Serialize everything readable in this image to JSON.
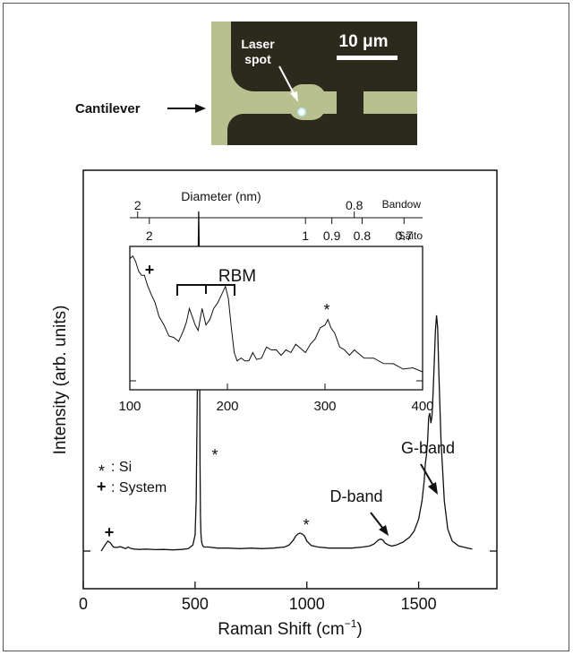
{
  "figure": {
    "cantilever_label": "Cantilever",
    "laser_label_line1": "Laser",
    "laser_label_line2": "spot",
    "scale_bar_label": "10 μm"
  },
  "chart_data": [
    {
      "type": "line",
      "name": "main",
      "xlabel": "Raman Shift (cm",
      "xlabel_sup": "−1",
      "xlabel_close": ")",
      "ylabel": "Intensity (arb. units)",
      "xlim": [
        0,
        1850
      ],
      "xticks": [
        0,
        500,
        1000,
        1500
      ],
      "x": [
        80,
        100,
        110,
        120,
        135,
        150,
        165,
        180,
        190,
        200,
        215,
        230,
        250,
        280,
        320,
        360,
        400,
        440,
        470,
        490,
        500,
        505,
        510,
        514,
        516,
        518,
        520,
        522,
        524,
        526,
        528,
        530,
        535,
        540,
        560,
        600,
        650,
        700,
        750,
        800,
        850,
        900,
        920,
        940,
        950,
        960,
        970,
        980,
        990,
        1000,
        1020,
        1050,
        1100,
        1150,
        1200,
        1250,
        1280,
        1300,
        1320,
        1330,
        1340,
        1350,
        1365,
        1380,
        1400,
        1430,
        1460,
        1480,
        1500,
        1515,
        1525,
        1530,
        1535,
        1540,
        1545,
        1550,
        1555,
        1560,
        1565,
        1570,
        1575,
        1580,
        1585,
        1590,
        1600,
        1615,
        1630,
        1650,
        1680,
        1700,
        1720,
        1740
      ],
      "y": [
        0,
        0.35,
        0.5,
        0.42,
        0.2,
        0.18,
        0.22,
        0.16,
        0.12,
        0.2,
        0.12,
        0.1,
        0.08,
        0.1,
        0.07,
        0.08,
        0.06,
        0.08,
        0.12,
        0.3,
        0.8,
        2.5,
        8,
        15,
        17,
        15.5,
        10,
        4.5,
        1.8,
        0.9,
        0.6,
        0.4,
        0.25,
        0.2,
        0.2,
        0.15,
        0.15,
        0.12,
        0.15,
        0.12,
        0.15,
        0.2,
        0.3,
        0.55,
        0.75,
        0.85,
        0.9,
        0.85,
        0.75,
        0.5,
        0.28,
        0.2,
        0.15,
        0.15,
        0.15,
        0.2,
        0.25,
        0.35,
        0.55,
        0.6,
        0.55,
        0.4,
        0.3,
        0.25,
        0.3,
        0.45,
        0.7,
        1,
        1.6,
        2.5,
        3.5,
        4.4,
        4.8,
        5.5,
        6.7,
        6.9,
        6.4,
        6.8,
        8,
        9.5,
        11,
        11.8,
        11.2,
        9,
        5.5,
        2.5,
        1.1,
        0.5,
        0.25,
        0.2,
        0.15,
        0.1
      ],
      "annotations": [
        {
          "text": "*",
          "x": 570,
          "y": 6.5
        },
        {
          "text": "*",
          "x": 960,
          "y": 1.35
        },
        {
          "text": "+",
          "x": 120,
          "y": 0.9
        },
        {
          "text": "G-band"
        },
        {
          "text": "D-band"
        }
      ],
      "legend": [
        {
          "symbol": "*",
          "label": ": Si"
        },
        {
          "symbol": "+",
          "label": ": System"
        }
      ]
    },
    {
      "type": "line",
      "name": "inset",
      "xlim": [
        100,
        400
      ],
      "xticks": [
        100,
        200,
        300,
        400
      ],
      "top_axis_1_label": "Bandow",
      "top_axis_1_ticks": [
        {
          "label": "2",
          "x": 108
        },
        {
          "label": "0.8",
          "x": 330
        }
      ],
      "top_axis_2_label": "Saito",
      "top_axis_2_ticks": [
        {
          "label": "2",
          "x": 120
        },
        {
          "label": "1",
          "x": 280
        },
        {
          "label": "0.9",
          "x": 307
        },
        {
          "label": "0.8",
          "x": 338
        },
        {
          "label": "0.7",
          "x": 381
        }
      ],
      "top_title": "Diameter (nm)",
      "x": [
        100,
        103,
        106,
        109,
        112,
        115,
        118,
        122,
        126,
        130,
        135,
        140,
        145,
        150,
        155,
        158,
        161,
        164,
        167,
        170,
        174,
        178,
        182,
        186,
        190,
        194,
        198,
        201,
        204,
        207,
        210,
        214,
        218,
        222,
        226,
        230,
        235,
        240,
        245,
        250,
        255,
        260,
        265,
        270,
        275,
        280,
        285,
        290,
        295,
        300,
        303,
        306,
        310,
        315,
        320,
        325,
        330,
        340,
        350,
        360,
        370,
        380,
        390,
        400
      ],
      "y": [
        0.92,
        0.96,
        0.9,
        0.85,
        0.8,
        0.82,
        0.73,
        0.68,
        0.6,
        0.52,
        0.44,
        0.38,
        0.35,
        0.34,
        0.4,
        0.48,
        0.56,
        0.52,
        0.44,
        0.42,
        0.56,
        0.46,
        0.48,
        0.58,
        0.6,
        0.68,
        0.72,
        0.65,
        0.42,
        0.26,
        0.18,
        0.22,
        0.18,
        0.2,
        0.24,
        0.21,
        0.2,
        0.3,
        0.26,
        0.28,
        0.22,
        0.28,
        0.24,
        0.32,
        0.27,
        0.26,
        0.3,
        0.36,
        0.42,
        0.46,
        0.48,
        0.44,
        0.38,
        0.3,
        0.26,
        0.24,
        0.26,
        0.22,
        0.2,
        0.18,
        0.16,
        0.14,
        0.13,
        0.12
      ],
      "annotations": [
        {
          "text": "RBM",
          "x": 180
        },
        {
          "text": "*",
          "x": 300
        },
        {
          "text": "+",
          "x": 120
        }
      ]
    }
  ]
}
